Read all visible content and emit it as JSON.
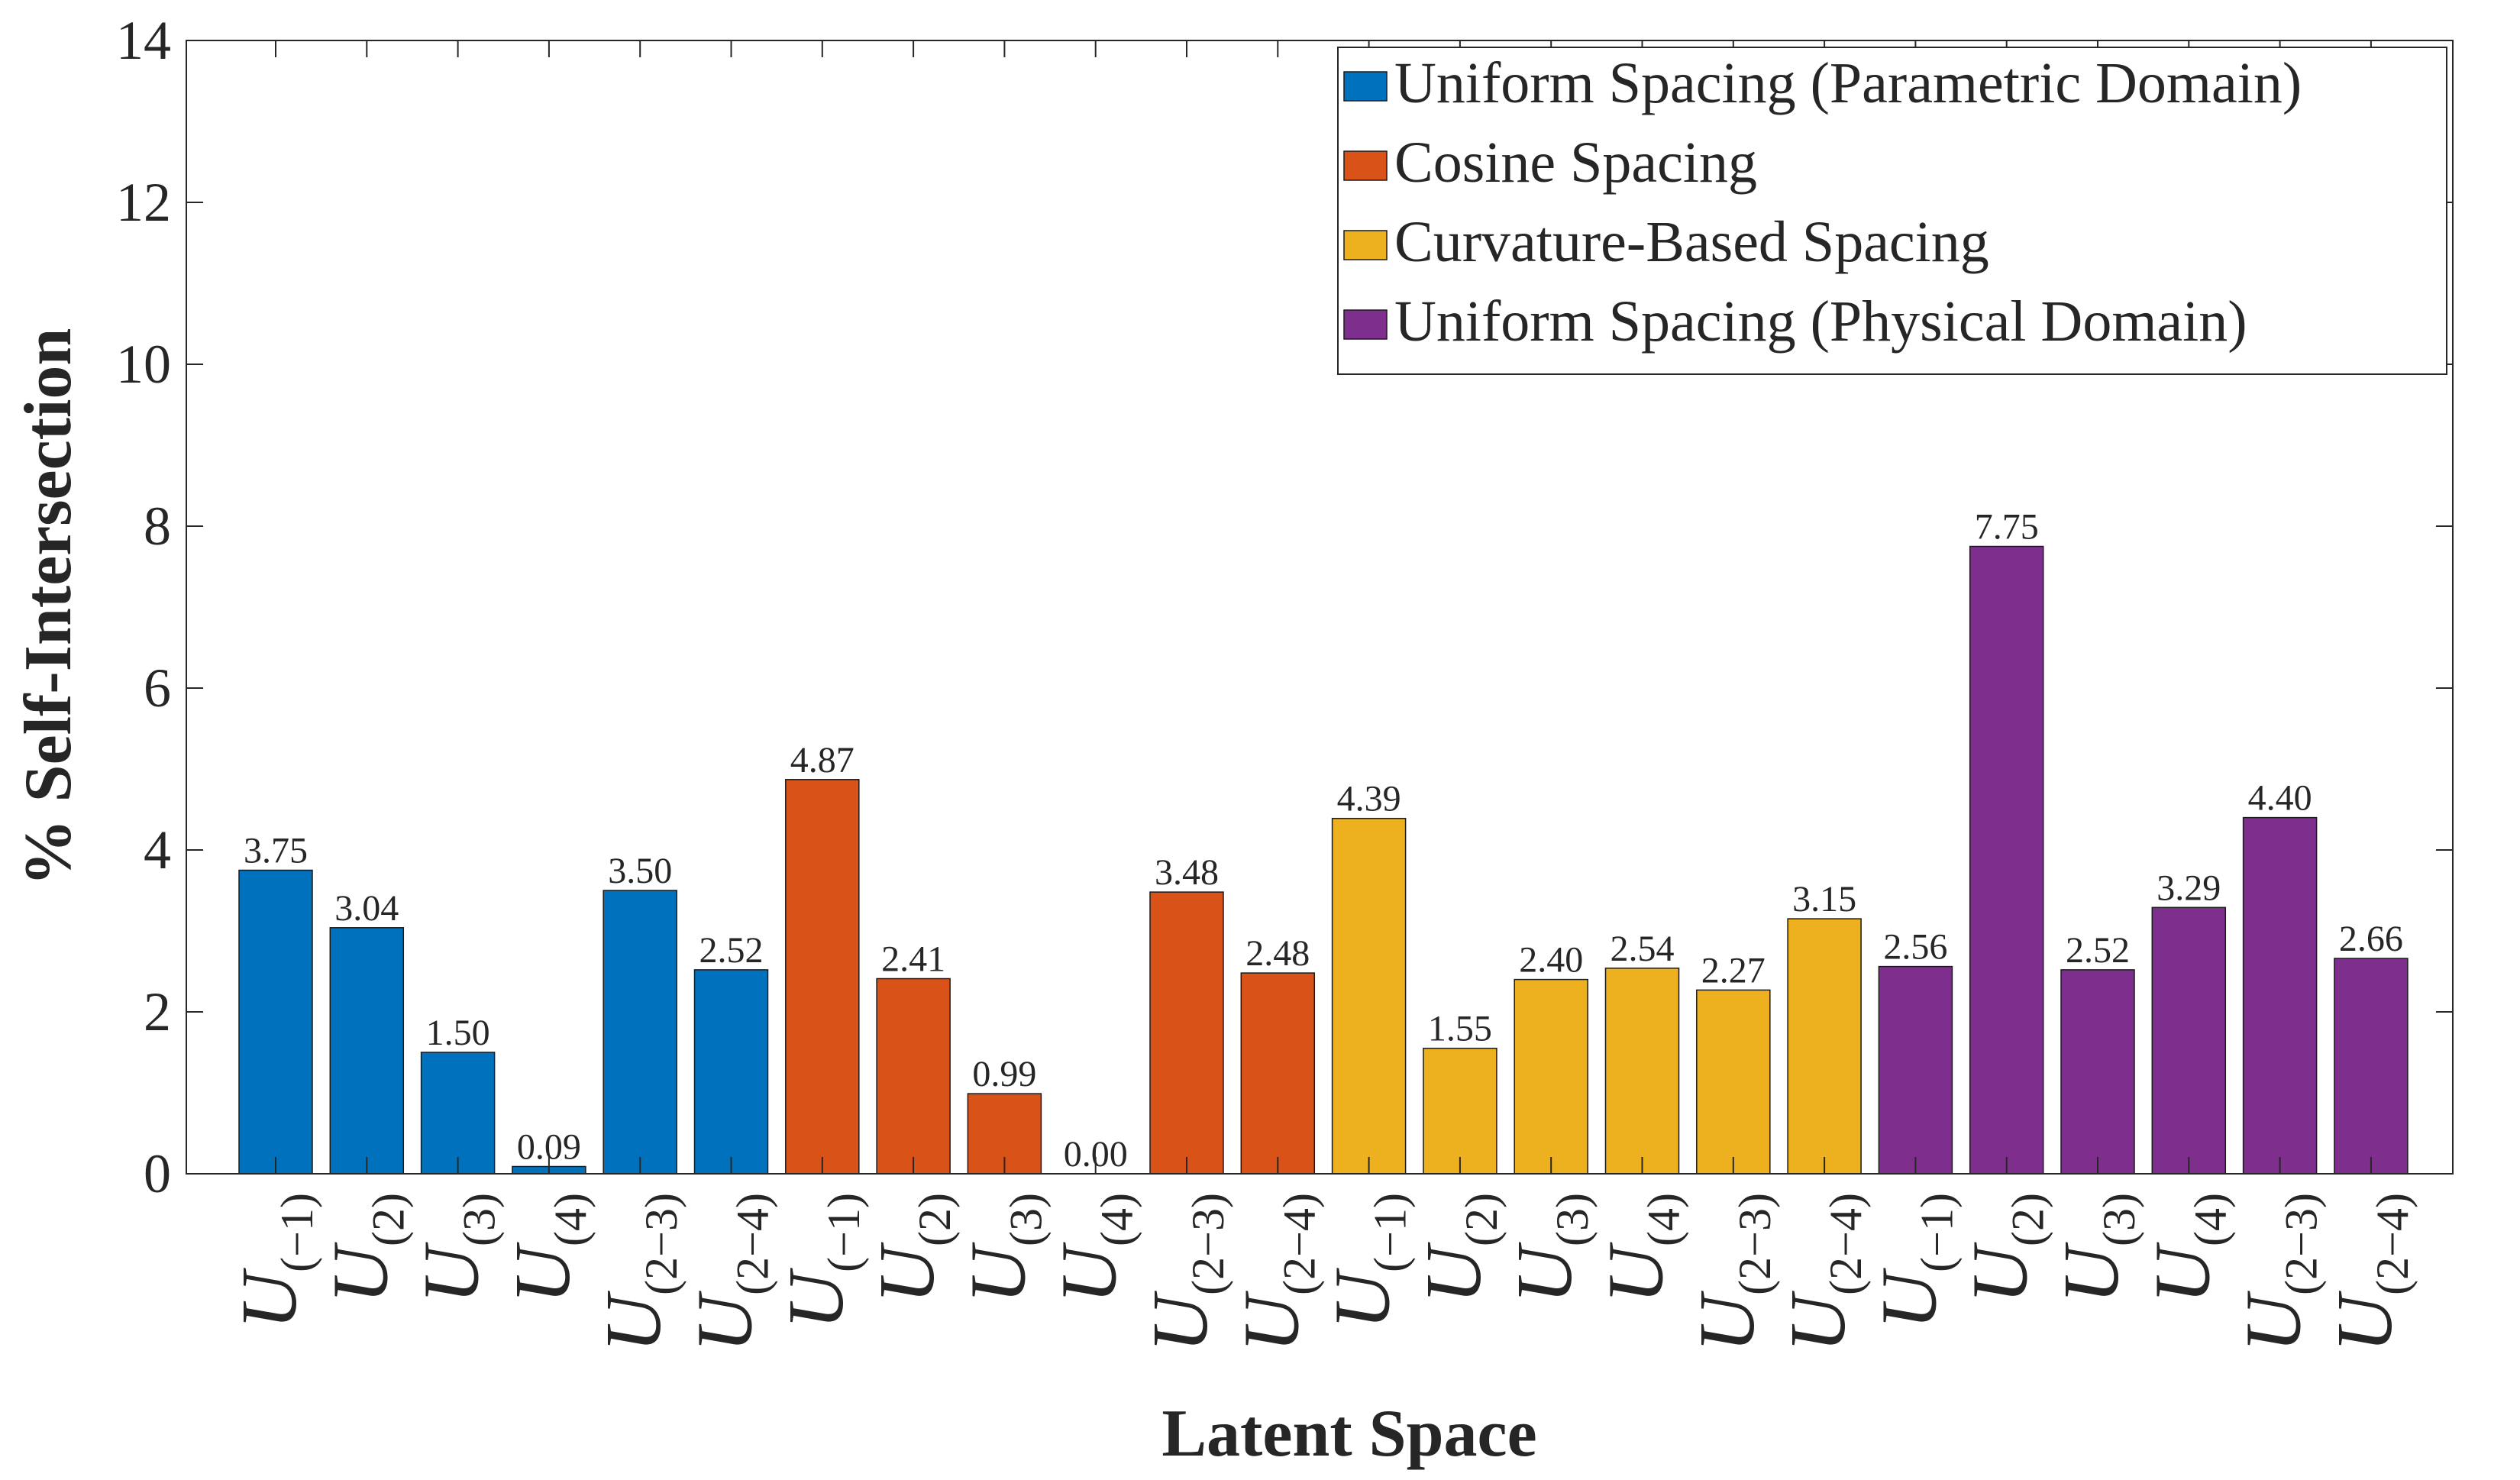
{
  "chart_data": {
    "type": "bar",
    "xlabel": "Latent Space",
    "ylabel": "% Self-Intersection",
    "ylim": [
      0,
      14
    ],
    "yticks": [
      0,
      2,
      4,
      6,
      8,
      10,
      12,
      14
    ],
    "grid": false,
    "legend_position": "top-right",
    "category_symbol": "U",
    "categories": [
      "(−1)",
      "(2)",
      "(3)",
      "(4)",
      "(2−3)",
      "(2−4)"
    ],
    "series": [
      {
        "name": "Uniform Spacing (Parametric Domain)",
        "color": "#0072BD",
        "values": [
          3.75,
          3.04,
          1.5,
          0.09,
          3.5,
          2.52
        ],
        "labels": [
          "3.75",
          "3.04",
          "1.50",
          "0.09",
          "3.50",
          "2.52"
        ]
      },
      {
        "name": "Cosine Spacing",
        "color": "#D95319",
        "values": [
          4.87,
          2.41,
          0.99,
          0.0,
          3.48,
          2.48
        ],
        "labels": [
          "4.87",
          "2.41",
          "0.99",
          "0.00",
          "3.48",
          "2.48"
        ]
      },
      {
        "name": "Curvature-Based Spacing",
        "color": "#EDB120",
        "values": [
          4.39,
          1.55,
          2.4,
          2.54,
          2.27,
          3.15
        ],
        "labels": [
          "4.39",
          "1.55",
          "2.40",
          "2.54",
          "2.27",
          "3.15"
        ]
      },
      {
        "name": "Uniform Spacing (Physical Domain)",
        "color": "#7E2F8E",
        "values": [
          2.56,
          7.75,
          2.52,
          3.29,
          4.4,
          2.66
        ],
        "labels": [
          "2.56",
          "7.75",
          "2.52",
          "3.29",
          "4.40",
          "2.66"
        ]
      }
    ]
  }
}
